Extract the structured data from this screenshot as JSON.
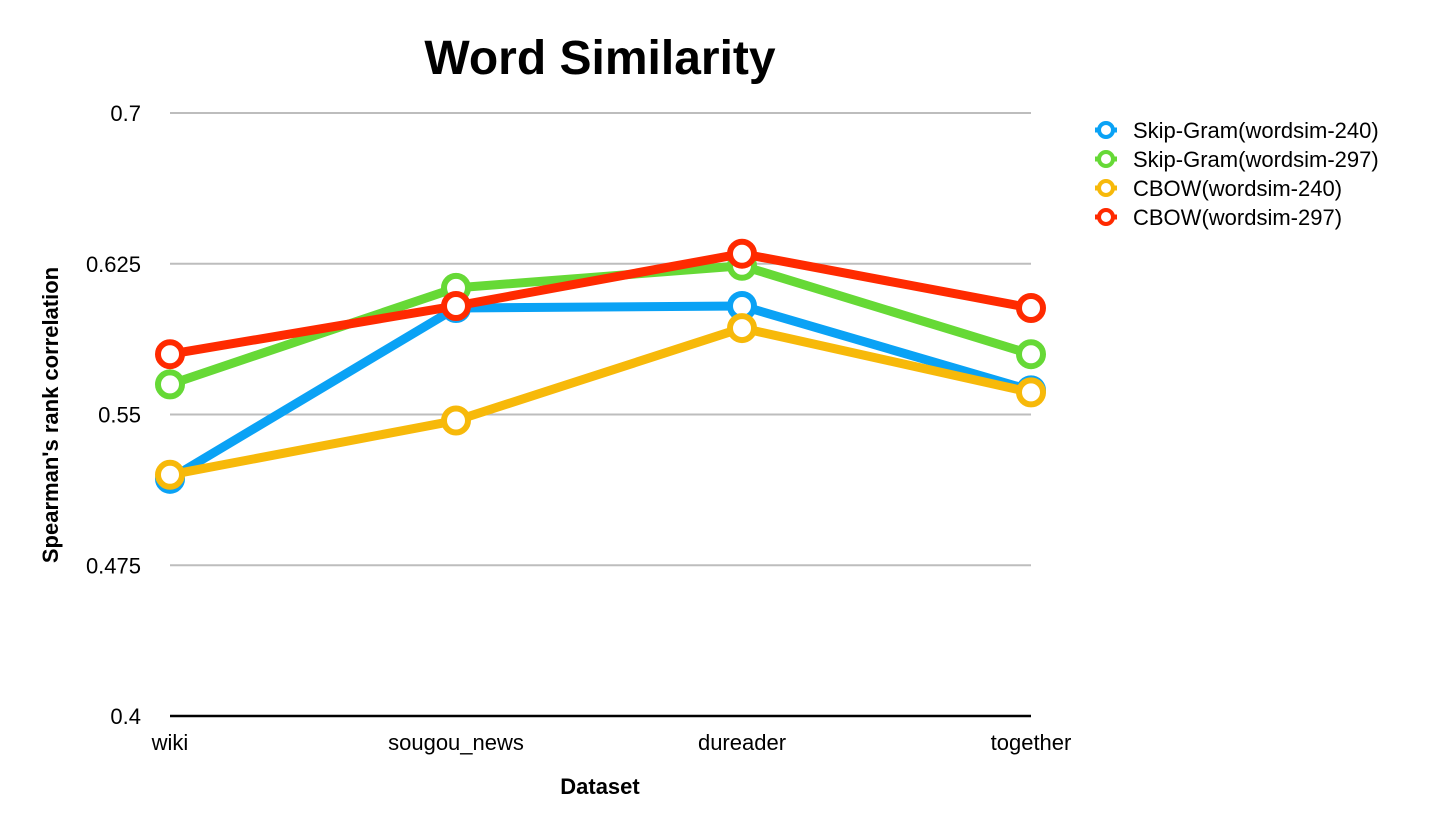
{
  "chart_data": {
    "type": "line",
    "title": "Word Similarity",
    "xlabel": "Dataset",
    "ylabel": "Spearman's rank correlation",
    "categories": [
      "wiki",
      "sougou_news",
      "dureader",
      "together"
    ],
    "ylim": [
      0.4,
      0.7
    ],
    "yticks": [
      "0.4",
      "0.475",
      "0.55",
      "0.625",
      "0.7"
    ],
    "grid": true,
    "legend_position": "top-right",
    "series": [
      {
        "name": "Skip-Gram(wordsim-240)",
        "color": "#0aa2f5",
        "values": [
          0.518,
          0.603,
          0.604,
          0.562
        ]
      },
      {
        "name": "Skip-Gram(wordsim-297)",
        "color": "#66d936",
        "values": [
          0.565,
          0.613,
          0.624,
          0.58
        ]
      },
      {
        "name": "CBOW(wordsim-240)",
        "color": "#f7b90a",
        "values": [
          0.52,
          0.547,
          0.593,
          0.561
        ]
      },
      {
        "name": "CBOW(wordsim-297)",
        "color": "#ff2a00",
        "values": [
          0.58,
          0.604,
          0.63,
          0.603
        ]
      }
    ]
  }
}
